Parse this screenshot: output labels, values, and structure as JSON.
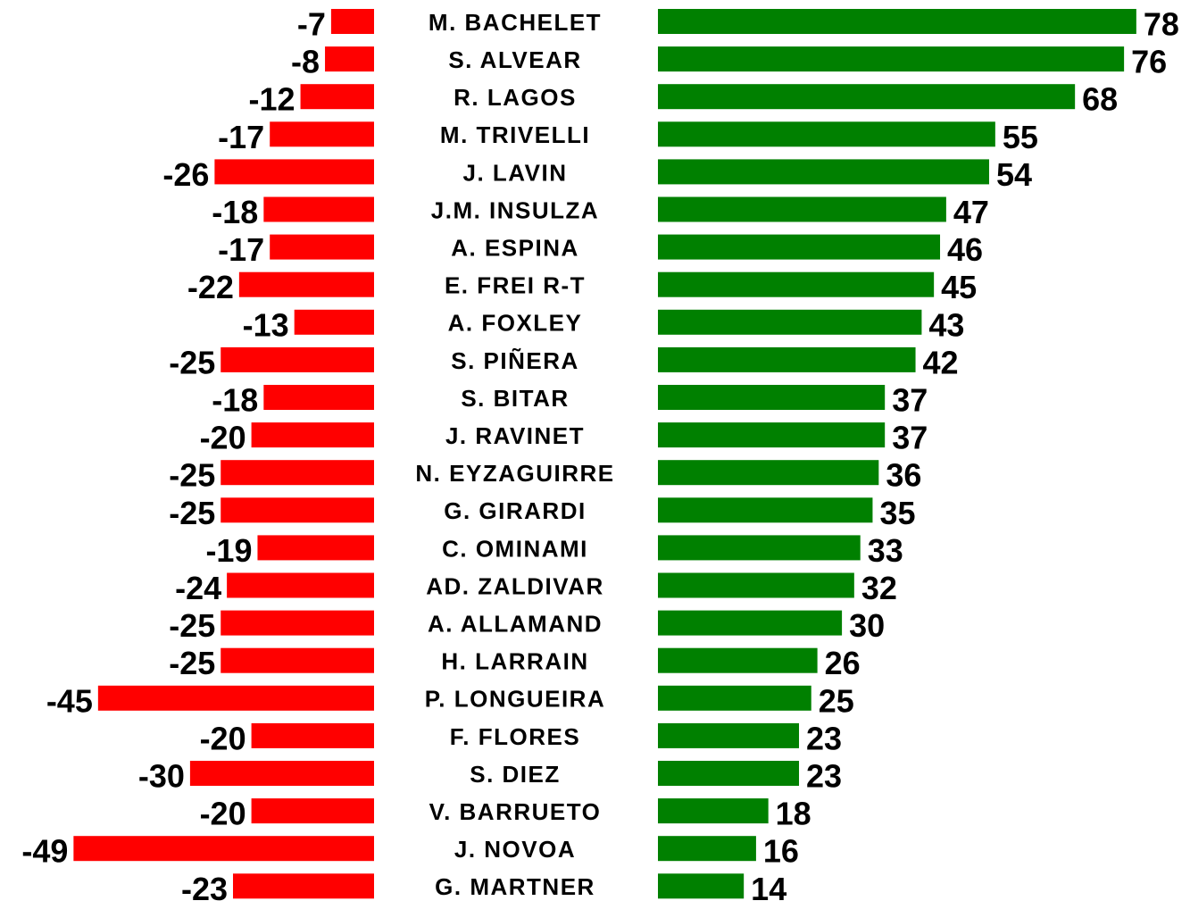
{
  "chart_data": {
    "type": "bar",
    "orientation": "horizontal",
    "categories": [
      "M. BACHELET",
      "S. ALVEAR",
      "R. LAGOS",
      "M. TRIVELLI",
      "J. LAVIN",
      "J.M. INSULZA",
      "A. ESPINA",
      "E. FREI R-T",
      "A. FOXLEY",
      "S. PIÑERA",
      "S. BITAR",
      "J. RAVINET",
      "N. EYZAGUIRRE",
      "G. GIRARDI",
      "C. OMINAMI",
      "AD. ZALDIVAR",
      "A. ALLAMAND",
      "H. LARRAIN",
      "P. LONGUEIRA",
      "F. FLORES",
      "S. DIEZ",
      "V. BARRUETO",
      "J. NOVOA",
      "G. MARTNER"
    ],
    "series": [
      {
        "color": "#ff0000",
        "values": [
          -7,
          -8,
          -12,
          -17,
          -26,
          -18,
          -17,
          -22,
          -13,
          -25,
          -18,
          -20,
          -25,
          -25,
          -19,
          -24,
          -25,
          -25,
          -45,
          -20,
          -30,
          -20,
          -49,
          -23
        ]
      },
      {
        "color": "#008000",
        "values": [
          78,
          76,
          68,
          55,
          54,
          47,
          46,
          45,
          43,
          42,
          37,
          37,
          36,
          35,
          33,
          32,
          30,
          26,
          25,
          23,
          23,
          18,
          16,
          14
        ]
      }
    ]
  }
}
